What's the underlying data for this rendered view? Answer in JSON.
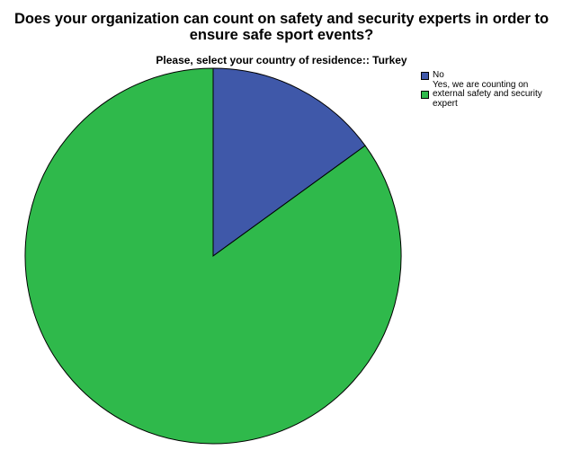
{
  "chart_data": {
    "type": "pie",
    "title": "Does your organization can count on safety and security experts in order to ensure safe sport events?",
    "subtitle": "Please, select your country of residence:: Turkey",
    "categories": [
      "No",
      "Yes, we are counting on external safety and security expert"
    ],
    "values": [
      15,
      85
    ],
    "colors": [
      "#3f58a9",
      "#2fb94b"
    ],
    "legend_position": "top-right"
  }
}
